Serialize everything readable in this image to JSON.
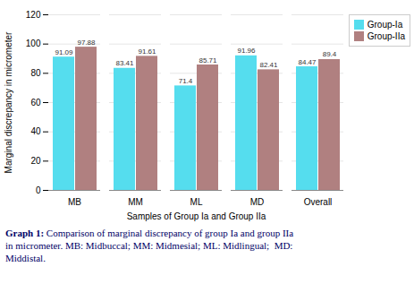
{
  "chart_data": {
    "type": "bar",
    "categories": [
      "MB",
      "MM",
      "ML",
      "MD",
      "Overall"
    ],
    "series": [
      {
        "name": "Group-Ia",
        "color": "#55DDEE",
        "values": [
          91.09,
          83.41,
          71.4,
          91.96,
          84.47
        ]
      },
      {
        "name": "Group-IIa",
        "color": "#B08080",
        "values": [
          97.88,
          91.61,
          85.71,
          82.41,
          89.4
        ]
      }
    ],
    "xlabel": "Samples of Group Ia and Group IIa",
    "ylabel": "Marginal discrepancy in micrometer",
    "ylim": [
      0,
      120
    ],
    "yticks": [
      0,
      20,
      40,
      60,
      80,
      100,
      120
    ],
    "grid": true,
    "legend": "upper right",
    "data_labels": true,
    "caption": "Graph 1: Comparison of marginal discrepancy of group Ia and group IIa\nin micrometer. MB: Midbuccal; MM: Midmesial; ML: Midlingual;  MD:\nMiddistal."
  }
}
